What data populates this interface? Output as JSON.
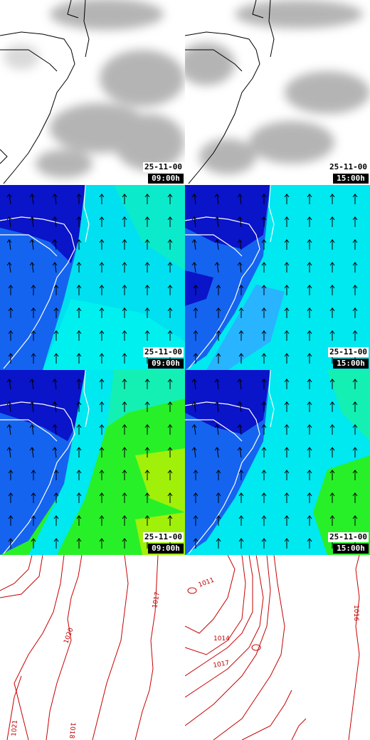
{
  "panels": [
    {
      "id": "cloud-0900",
      "kind": "cloud",
      "date": "25-11-00",
      "time": "09:00h"
    },
    {
      "id": "cloud-1500",
      "kind": "cloud",
      "date": "25-11-00",
      "time": "15:00h"
    },
    {
      "id": "wind-a-0900",
      "kind": "wind",
      "date": "25-11-00",
      "time": "09:00h"
    },
    {
      "id": "wind-a-1500",
      "kind": "wind",
      "date": "25-11-00",
      "time": "15:00h"
    },
    {
      "id": "wind-b-0900",
      "kind": "wind",
      "date": "25-11-00",
      "time": "09:00h"
    },
    {
      "id": "wind-b-1500",
      "kind": "wind",
      "date": "25-11-00",
      "time": "15:00h"
    }
  ],
  "isobars": {
    "left": [
      "1020",
      "1017",
      "1021",
      "1018"
    ],
    "right": [
      "1011",
      "1014",
      "1017",
      "1016"
    ]
  },
  "colors": {
    "deep_blue": "#0a14c8",
    "blue": "#1464f0",
    "cyan": "#00f0f0",
    "light_blue": "#28b4ff",
    "aqua_green": "#14f0b4",
    "green": "#28f028",
    "yellow_green": "#a0f00a",
    "isobar_red": "#c80000",
    "coast": "#000000"
  }
}
